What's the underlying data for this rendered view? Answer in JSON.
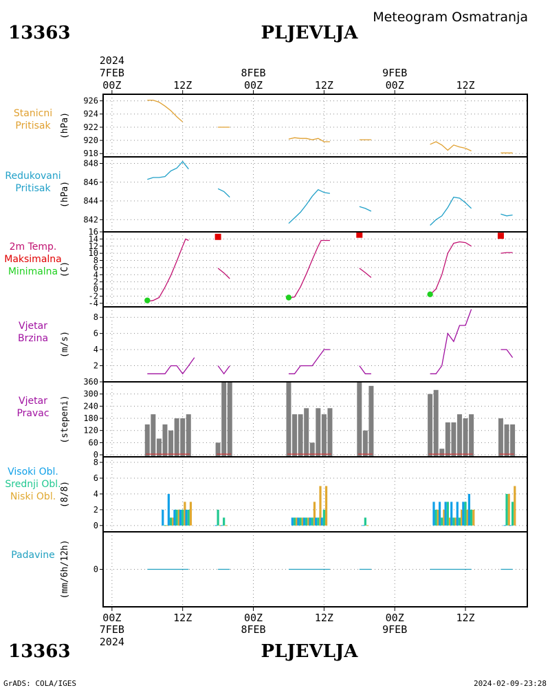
{
  "header": {
    "station_id": "13363",
    "station_name": "PLJEVLJA",
    "title": "Meteogram Osmatranja"
  },
  "footer": {
    "station_id": "13363",
    "station_name": "PLJEVLJA",
    "credit": "GrADS: COLA/IGES",
    "timestamp": "2024-02-09-23:28"
  },
  "time_axis": {
    "year": "2024",
    "days": [
      "7FEB",
      "8FEB",
      "9FEB"
    ],
    "ticks": [
      {
        "t": 0,
        "label": "00Z"
      },
      {
        "t": 12,
        "label": "12Z"
      },
      {
        "t": 24,
        "label": "00Z"
      },
      {
        "t": 36,
        "label": "12Z"
      },
      {
        "t": 48,
        "label": "00Z"
      },
      {
        "t": 60,
        "label": "12Z"
      }
    ],
    "range": [
      -1.5,
      70.5
    ]
  },
  "colors": {
    "pressure": "#e0a030",
    "reduced": "#20a0c8",
    "temp": "#c01070",
    "tmax": "#e00000",
    "tmin": "#20d020",
    "wind": "#a010a0",
    "bars": "#808080",
    "cloud_high": "#10a0e8",
    "cloud_mid": "#20c890",
    "cloud_low": "#e0a830",
    "precip": "#20a0c0"
  },
  "chart_data": [
    {
      "type": "line",
      "panel_label": [
        "Stanicni",
        "Pritisak"
      ],
      "ylabel": "(hPa)",
      "ylim": [
        917.5,
        927
      ],
      "yticks": [
        918,
        920,
        922,
        924,
        926
      ],
      "segments": [
        [
          [
            6,
            926.1
          ],
          [
            7,
            926.1
          ],
          [
            8,
            925.8
          ],
          [
            9,
            925.2
          ],
          [
            10,
            924.5
          ],
          [
            11,
            923.6
          ],
          [
            12,
            922.8
          ]
        ],
        [
          [
            18,
            922.0
          ],
          [
            20,
            922.0
          ]
        ],
        [
          [
            30,
            920.2
          ],
          [
            31,
            920.4
          ],
          [
            32,
            920.3
          ],
          [
            33,
            920.3
          ],
          [
            34,
            920.1
          ],
          [
            35,
            920.3
          ],
          [
            36,
            919.8
          ],
          [
            37,
            919.8
          ]
        ],
        [
          [
            42,
            920.1
          ],
          [
            44,
            920.1
          ]
        ],
        [
          [
            54,
            919.4
          ],
          [
            55,
            919.8
          ],
          [
            56,
            919.3
          ],
          [
            57,
            918.5
          ],
          [
            58,
            919.3
          ],
          [
            59,
            919.0
          ],
          [
            60,
            918.8
          ],
          [
            61,
            918.4
          ]
        ],
        [
          [
            66,
            918.1
          ],
          [
            68,
            918.1
          ]
        ]
      ]
    },
    {
      "type": "line",
      "panel_label": [
        "Redukovani",
        "Pritisak"
      ],
      "ylabel": "(hPa)",
      "ylim": [
        840.7,
        848.7
      ],
      "yticks": [
        842,
        844,
        846,
        848
      ],
      "segments": [
        [
          [
            6,
            846.3
          ],
          [
            7,
            846.5
          ],
          [
            8,
            846.5
          ],
          [
            9,
            846.6
          ],
          [
            10,
            847.2
          ],
          [
            11,
            847.5
          ],
          [
            12,
            848.2
          ],
          [
            13,
            847.4
          ]
        ],
        [
          [
            18,
            845.3
          ],
          [
            19,
            845.0
          ],
          [
            20,
            844.4
          ]
        ],
        [
          [
            30,
            841.6
          ],
          [
            31,
            842.2
          ],
          [
            32,
            842.8
          ],
          [
            33,
            843.6
          ],
          [
            34,
            844.5
          ],
          [
            35,
            845.2
          ],
          [
            36,
            844.9
          ],
          [
            37,
            844.8
          ]
        ],
        [
          [
            42,
            843.4
          ],
          [
            43,
            843.2
          ],
          [
            44,
            842.9
          ]
        ],
        [
          [
            54,
            841.4
          ],
          [
            55,
            842.0
          ],
          [
            56,
            842.4
          ],
          [
            57,
            843.3
          ],
          [
            58,
            844.4
          ],
          [
            59,
            844.3
          ],
          [
            60,
            843.8
          ],
          [
            61,
            843.2
          ]
        ],
        [
          [
            66,
            842.6
          ],
          [
            67,
            842.4
          ],
          [
            68,
            842.5
          ]
        ]
      ]
    },
    {
      "type": "line",
      "panel_label": [
        "2m Temp.",
        "Maksimalna",
        "Minimalna"
      ],
      "ylabel": "(C)",
      "ylim": [
        -5,
        16
      ],
      "yticks": [
        -4,
        -2,
        0,
        2,
        4,
        6,
        8,
        10,
        12,
        14,
        16
      ],
      "segments": [
        [
          [
            6,
            -3.5
          ],
          [
            7,
            -3.2
          ],
          [
            8,
            -2.4
          ],
          [
            9,
            0.5
          ],
          [
            10,
            3.8
          ],
          [
            11,
            7.8
          ],
          [
            12,
            12.0
          ],
          [
            12.5,
            14.0
          ],
          [
            13,
            13.6
          ]
        ],
        [
          [
            18,
            5.8
          ],
          [
            19,
            4.5
          ],
          [
            20,
            2.9
          ]
        ],
        [
          [
            30,
            -2.6
          ],
          [
            31,
            -2.2
          ],
          [
            32,
            0.6
          ],
          [
            33,
            4.2
          ],
          [
            34,
            8.2
          ],
          [
            35,
            12.0
          ],
          [
            35.5,
            13.6
          ],
          [
            37,
            13.6
          ]
        ],
        [
          [
            42,
            5.8
          ],
          [
            43,
            4.6
          ],
          [
            44,
            3.2
          ]
        ],
        [
          [
            54,
            -1.6
          ],
          [
            55,
            0.0
          ],
          [
            56,
            4.0
          ],
          [
            57,
            10.0
          ],
          [
            58,
            12.8
          ],
          [
            59,
            13.2
          ],
          [
            60,
            13.0
          ],
          [
            61,
            12.0
          ]
        ],
        [
          [
            66,
            10.0
          ],
          [
            67,
            10.2
          ],
          [
            68,
            10.2
          ]
        ]
      ],
      "tmax": [
        [
          18,
          14.6
        ],
        [
          42,
          15.2
        ],
        [
          66,
          14.9
        ]
      ],
      "tmin": [
        [
          6,
          -3.2
        ],
        [
          30,
          -2.4
        ],
        [
          54,
          -1.5
        ]
      ]
    },
    {
      "type": "line",
      "panel_label": [
        "Vjetar",
        "Brzina"
      ],
      "ylabel": "(m/s)",
      "ylim": [
        0,
        9.3
      ],
      "yticks": [
        2,
        4,
        6,
        8
      ],
      "segments": [
        [
          [
            6,
            1
          ],
          [
            8,
            1
          ],
          [
            9,
            1
          ],
          [
            10,
            2
          ],
          [
            11,
            2
          ],
          [
            12,
            1
          ],
          [
            13,
            2
          ],
          [
            14,
            3
          ]
        ],
        [
          [
            18,
            2
          ],
          [
            19,
            1
          ],
          [
            20,
            2
          ]
        ],
        [
          [
            30,
            1
          ],
          [
            31,
            1
          ],
          [
            32,
            2
          ],
          [
            33,
            2
          ],
          [
            34,
            2
          ],
          [
            35,
            3
          ],
          [
            36,
            4
          ],
          [
            37,
            4
          ]
        ],
        [
          [
            42,
            2
          ],
          [
            43,
            1
          ],
          [
            44,
            1
          ]
        ],
        [
          [
            54,
            1
          ],
          [
            55,
            1
          ],
          [
            56,
            2
          ],
          [
            57,
            6
          ],
          [
            58,
            5
          ],
          [
            59,
            7
          ],
          [
            60,
            7
          ],
          [
            61,
            9
          ]
        ],
        [
          [
            66,
            4
          ],
          [
            67,
            4
          ],
          [
            68,
            3
          ]
        ]
      ]
    },
    {
      "type": "bar",
      "panel_label": [
        "Vjetar",
        "Pravac"
      ],
      "ylabel": "(stepeni)",
      "ylim": [
        -10,
        360
      ],
      "yticks": [
        0,
        60,
        120,
        180,
        240,
        300,
        360
      ],
      "x": [
        6,
        7,
        8,
        9,
        10,
        11,
        12,
        13,
        18,
        19,
        20,
        30,
        31,
        32,
        33,
        34,
        35,
        36,
        37,
        42,
        43,
        44,
        54,
        55,
        56,
        57,
        58,
        59,
        60,
        61,
        66,
        67,
        68
      ],
      "values": [
        150,
        200,
        80,
        150,
        120,
        180,
        180,
        200,
        60,
        360,
        360,
        360,
        200,
        200,
        230,
        60,
        230,
        200,
        230,
        360,
        120,
        340,
        300,
        320,
        30,
        160,
        160,
        200,
        180,
        200,
        180,
        150,
        150
      ]
    },
    {
      "type": "bar",
      "panel_label": [
        "Visoki Obl.",
        "Srednji Obl.",
        "Niski Obl."
      ],
      "ylabel": "(8/8)",
      "ylim": [
        -0.8,
        8.7
      ],
      "yticks": [
        0,
        2,
        4,
        6,
        8
      ],
      "x": [
        9,
        10,
        11,
        12,
        13,
        18,
        19,
        31,
        32,
        33,
        34,
        35,
        36,
        43,
        55,
        56,
        57,
        58,
        59,
        60,
        61,
        67,
        68
      ],
      "series": [
        {
          "name": "Visoki Obl.",
          "values": [
            2,
            4,
            2,
            2,
            2,
            0,
            0,
            1,
            1,
            1,
            1,
            1,
            1,
            0,
            3,
            3,
            3,
            3,
            3,
            3,
            4,
            0,
            0
          ]
        },
        {
          "name": "Srednji Obl.",
          "values": [
            0,
            1,
            2,
            2,
            2,
            2,
            1,
            1,
            1,
            1,
            1,
            1,
            2,
            1,
            2,
            1,
            3,
            1,
            1,
            3,
            2,
            4,
            3
          ]
        },
        {
          "name": "Niski Obl.",
          "values": [
            0,
            1,
            2,
            3,
            3,
            0,
            0,
            1,
            1,
            1,
            3,
            5,
            5,
            0,
            2,
            2,
            1,
            1,
            2,
            2,
            2,
            4,
            5
          ]
        }
      ]
    },
    {
      "type": "line",
      "panel_label": [
        "Padavine"
      ],
      "ylabel": "(mm/6h/12h)",
      "ylim": [
        -5,
        5
      ],
      "yticks": [
        0
      ],
      "segments": [
        [
          [
            6,
            0
          ],
          [
            13,
            0
          ]
        ],
        [
          [
            18,
            0
          ],
          [
            20,
            0
          ]
        ],
        [
          [
            30,
            0
          ],
          [
            37,
            0
          ]
        ],
        [
          [
            42,
            0
          ],
          [
            44,
            0
          ]
        ],
        [
          [
            54,
            0
          ],
          [
            61,
            0
          ]
        ],
        [
          [
            66,
            0
          ],
          [
            68,
            0
          ]
        ]
      ]
    }
  ]
}
